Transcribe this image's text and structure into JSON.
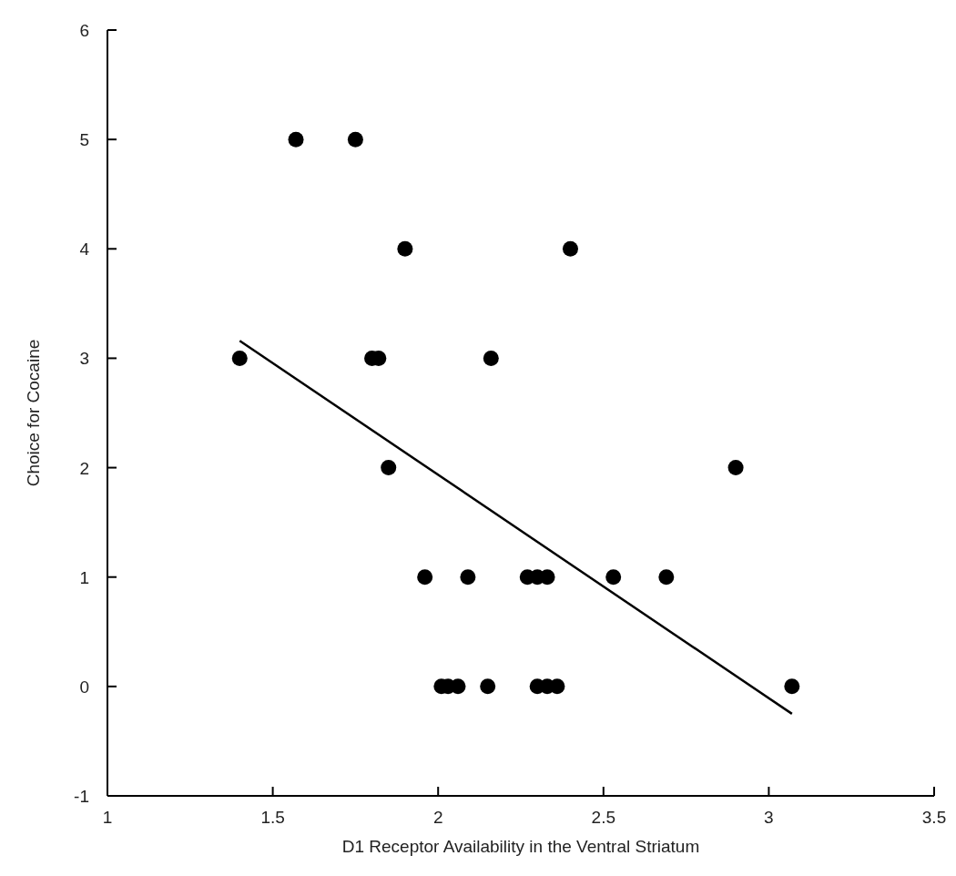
{
  "chart_data": {
    "type": "scatter",
    "xlabel": "D1 Receptor Availability in the Ventral Striatum",
    "ylabel": "Choice for Cocaine",
    "xlim": [
      1,
      3.5
    ],
    "xticks": [
      1,
      1.5,
      2,
      2.5,
      3,
      3.5
    ],
    "ylim": [
      -1,
      6
    ],
    "yticks": [
      -1,
      0,
      1,
      2,
      3,
      4,
      5,
      6
    ],
    "grid": false,
    "marker": "circle",
    "series": [
      {
        "color": "#000000",
        "x": [
          1.4,
          1.57,
          1.75,
          1.9,
          2.4,
          1.8,
          1.82,
          2.16,
          1.85,
          2.9,
          1.96,
          2.09,
          2.27,
          2.3,
          2.33,
          2.53,
          2.69,
          2.01,
          2.03,
          2.06,
          2.15,
          2.3,
          2.33,
          2.36,
          3.07
        ],
        "values": [
          3,
          5,
          5,
          4,
          4,
          3,
          3,
          3,
          2,
          2,
          1,
          1,
          1,
          1,
          1,
          1,
          1,
          0,
          0,
          0,
          0,
          0,
          0,
          0,
          0
        ]
      },
      {
        "type": "line",
        "color": "#000000",
        "x": [
          1.4,
          3.07
        ],
        "values": [
          3.16,
          -0.25
        ],
        "line_style": "solid",
        "marker": "none"
      }
    ]
  }
}
